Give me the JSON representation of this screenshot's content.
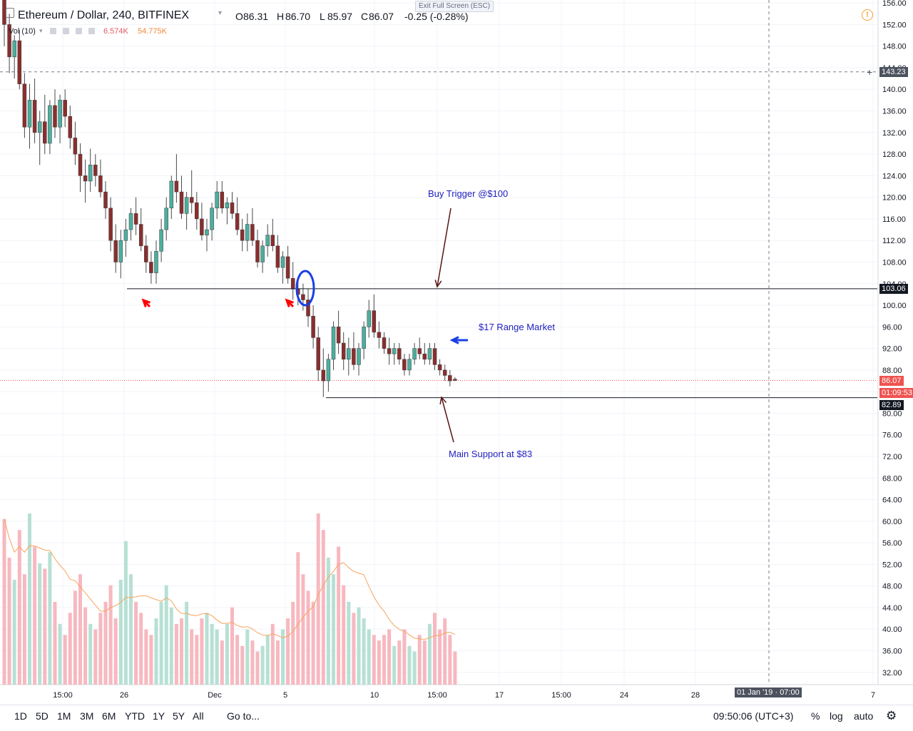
{
  "header": {
    "symbol": "Ethereum / Dollar, 240, BITFINEX",
    "open_label": "O",
    "open": "86.31",
    "high_label": "H",
    "high": "86.70",
    "low_label": "L",
    "low": "85.97",
    "close_label": "C",
    "close": "86.07",
    "change": "-0.25 (-0.28%)",
    "exit_fullscreen": "Exit Full Screen (ESC)",
    "volume_label": "Vol (10)",
    "volume_value": "6.574K",
    "volume_ma": "54.775K"
  },
  "price_labels": {
    "crosshair": "143.23",
    "resistance": "103.06",
    "last": "86.07",
    "countdown": "01:09:53",
    "support": "82.89"
  },
  "time_axis": {
    "crosshair_date": "01 Jan '19 · 07:00"
  },
  "annotations": {
    "buy_trigger": "Buy Trigger @$100",
    "range": "$17 Range Market",
    "support": "Main Support at $83"
  },
  "bottom_bar": {
    "timeframes": [
      "1D",
      "5D",
      "1M",
      "3M",
      "6M",
      "YTD",
      "1Y",
      "5Y",
      "All"
    ],
    "goto": "Go to...",
    "clock": "09:50:06 (UTC+3)",
    "percent": "%",
    "log": "log",
    "auto": "auto"
  },
  "colors": {
    "up": "#4caf9e",
    "down": "#8b2e2e",
    "vol_up": "#b7e0d4",
    "vol_down": "#f7b8bf",
    "annotation_text": "#1e1ebe",
    "arrow_red": "#ff0000",
    "arrow_blue": "#1a3fe6"
  },
  "chart_data": {
    "type": "candlestick",
    "title": "Ethereum / Dollar, 240, BITFINEX",
    "y_ticks": [
      32,
      36,
      40,
      44,
      48,
      52,
      56,
      60,
      64,
      68,
      72,
      76,
      80,
      84,
      88,
      92,
      96,
      100,
      104,
      108,
      112,
      116,
      120,
      124,
      128,
      132,
      136,
      140,
      144,
      148,
      152,
      156
    ],
    "ylim": [
      30.5,
      156.5
    ],
    "x_ticks": [
      "15:00",
      "26",
      "Dec",
      "5",
      "10",
      "15:00",
      "17",
      "15:00",
      "24",
      "28",
      "7"
    ],
    "resistance_level": 103.06,
    "support_level": 82.89,
    "last_price": 86.07,
    "crosshair_price": 143.23,
    "candles": [
      {
        "o": 158,
        "h": 160,
        "l": 148,
        "c": 152
      },
      {
        "o": 152,
        "h": 154,
        "l": 143,
        "c": 146
      },
      {
        "o": 146,
        "h": 150,
        "l": 142,
        "c": 149
      },
      {
        "o": 149,
        "h": 151,
        "l": 140,
        "c": 141
      },
      {
        "o": 141,
        "h": 143,
        "l": 131,
        "c": 133
      },
      {
        "o": 133,
        "h": 141,
        "l": 129,
        "c": 138
      },
      {
        "o": 138,
        "h": 142,
        "l": 130,
        "c": 132
      },
      {
        "o": 132,
        "h": 136,
        "l": 126,
        "c": 134
      },
      {
        "o": 134,
        "h": 139,
        "l": 128,
        "c": 130
      },
      {
        "o": 130,
        "h": 138,
        "l": 128,
        "c": 137
      },
      {
        "o": 137,
        "h": 140,
        "l": 131,
        "c": 133
      },
      {
        "o": 133,
        "h": 139,
        "l": 130,
        "c": 138
      },
      {
        "o": 138,
        "h": 140,
        "l": 133,
        "c": 135
      },
      {
        "o": 135,
        "h": 137,
        "l": 129,
        "c": 131
      },
      {
        "o": 131,
        "h": 134,
        "l": 126,
        "c": 128
      },
      {
        "o": 128,
        "h": 130,
        "l": 121,
        "c": 124
      },
      {
        "o": 124,
        "h": 127,
        "l": 119,
        "c": 123
      },
      {
        "o": 123,
        "h": 129,
        "l": 121,
        "c": 126
      },
      {
        "o": 126,
        "h": 128,
        "l": 122,
        "c": 124
      },
      {
        "o": 124,
        "h": 127,
        "l": 120,
        "c": 121
      },
      {
        "o": 121,
        "h": 123,
        "l": 116,
        "c": 118
      },
      {
        "o": 118,
        "h": 120,
        "l": 110,
        "c": 112
      },
      {
        "o": 112,
        "h": 115,
        "l": 106,
        "c": 108
      },
      {
        "o": 108,
        "h": 114,
        "l": 105,
        "c": 112
      },
      {
        "o": 112,
        "h": 116,
        "l": 109,
        "c": 114
      },
      {
        "o": 114,
        "h": 118,
        "l": 112,
        "c": 117
      },
      {
        "o": 117,
        "h": 120,
        "l": 113,
        "c": 115
      },
      {
        "o": 115,
        "h": 118,
        "l": 110,
        "c": 111
      },
      {
        "o": 111,
        "h": 113,
        "l": 106,
        "c": 108
      },
      {
        "o": 108,
        "h": 110,
        "l": 104,
        "c": 106
      },
      {
        "o": 106,
        "h": 112,
        "l": 104,
        "c": 110
      },
      {
        "o": 110,
        "h": 116,
        "l": 108,
        "c": 114
      },
      {
        "o": 114,
        "h": 120,
        "l": 112,
        "c": 118
      },
      {
        "o": 118,
        "h": 124,
        "l": 116,
        "c": 123
      },
      {
        "o": 123,
        "h": 128,
        "l": 119,
        "c": 121
      },
      {
        "o": 121,
        "h": 124,
        "l": 116,
        "c": 117
      },
      {
        "o": 117,
        "h": 121,
        "l": 114,
        "c": 120
      },
      {
        "o": 120,
        "h": 125,
        "l": 117,
        "c": 119
      },
      {
        "o": 119,
        "h": 121,
        "l": 114,
        "c": 116
      },
      {
        "o": 116,
        "h": 119,
        "l": 112,
        "c": 113
      },
      {
        "o": 113,
        "h": 116,
        "l": 110,
        "c": 114
      },
      {
        "o": 114,
        "h": 119,
        "l": 112,
        "c": 118
      },
      {
        "o": 118,
        "h": 123,
        "l": 116,
        "c": 121
      },
      {
        "o": 121,
        "h": 123,
        "l": 117,
        "c": 118
      },
      {
        "o": 118,
        "h": 120,
        "l": 115,
        "c": 119
      },
      {
        "o": 119,
        "h": 121,
        "l": 116,
        "c": 117
      },
      {
        "o": 117,
        "h": 120,
        "l": 113,
        "c": 114
      },
      {
        "o": 114,
        "h": 116,
        "l": 110,
        "c": 112
      },
      {
        "o": 112,
        "h": 117,
        "l": 110,
        "c": 115
      },
      {
        "o": 115,
        "h": 118,
        "l": 111,
        "c": 112
      },
      {
        "o": 112,
        "h": 114,
        "l": 107,
        "c": 108
      },
      {
        "o": 108,
        "h": 112,
        "l": 106,
        "c": 111
      },
      {
        "o": 111,
        "h": 115,
        "l": 109,
        "c": 113
      },
      {
        "o": 113,
        "h": 116,
        "l": 110,
        "c": 111
      },
      {
        "o": 111,
        "h": 113,
        "l": 106,
        "c": 107
      },
      {
        "o": 107,
        "h": 110,
        "l": 104,
        "c": 109
      },
      {
        "o": 109,
        "h": 111,
        "l": 104,
        "c": 105
      },
      {
        "o": 105,
        "h": 108,
        "l": 101,
        "c": 103
      },
      {
        "o": 103,
        "h": 105,
        "l": 100,
        "c": 102
      },
      {
        "o": 102,
        "h": 104,
        "l": 99,
        "c": 101
      },
      {
        "o": 101,
        "h": 103,
        "l": 96,
        "c": 98
      },
      {
        "o": 98,
        "h": 100,
        "l": 92,
        "c": 94
      },
      {
        "o": 94,
        "h": 96,
        "l": 86,
        "c": 88
      },
      {
        "o": 88,
        "h": 92,
        "l": 83,
        "c": 86
      },
      {
        "o": 86,
        "h": 91,
        "l": 84,
        "c": 90
      },
      {
        "o": 90,
        "h": 97,
        "l": 88,
        "c": 96
      },
      {
        "o": 96,
        "h": 99,
        "l": 91,
        "c": 93
      },
      {
        "o": 93,
        "h": 95,
        "l": 88,
        "c": 90
      },
      {
        "o": 90,
        "h": 94,
        "l": 87,
        "c": 92
      },
      {
        "o": 92,
        "h": 95,
        "l": 88,
        "c": 89
      },
      {
        "o": 89,
        "h": 93,
        "l": 87,
        "c": 92
      },
      {
        "o": 92,
        "h": 97,
        "l": 90,
        "c": 96
      },
      {
        "o": 96,
        "h": 101,
        "l": 94,
        "c": 99
      },
      {
        "o": 99,
        "h": 102,
        "l": 94,
        "c": 95
      },
      {
        "o": 95,
        "h": 97,
        "l": 92,
        "c": 94
      },
      {
        "o": 94,
        "h": 95,
        "l": 91,
        "c": 92
      },
      {
        "o": 92,
        "h": 94,
        "l": 89,
        "c": 91
      },
      {
        "o": 91,
        "h": 93,
        "l": 89,
        "c": 92
      },
      {
        "o": 92,
        "h": 93,
        "l": 89,
        "c": 90
      },
      {
        "o": 90,
        "h": 91,
        "l": 87,
        "c": 88
      },
      {
        "o": 88,
        "h": 91,
        "l": 87,
        "c": 90
      },
      {
        "o": 90,
        "h": 93,
        "l": 89,
        "c": 92
      },
      {
        "o": 92,
        "h": 94,
        "l": 90,
        "c": 91
      },
      {
        "o": 91,
        "h": 93,
        "l": 89,
        "c": 90
      },
      {
        "o": 90,
        "h": 93,
        "l": 89,
        "c": 92
      },
      {
        "o": 92,
        "h": 93,
        "l": 88,
        "c": 89
      },
      {
        "o": 89,
        "h": 90,
        "l": 87,
        "c": 88
      },
      {
        "o": 88,
        "h": 89,
        "l": 86,
        "c": 87
      },
      {
        "o": 87,
        "h": 88,
        "l": 85,
        "c": 86
      },
      {
        "o": 86.31,
        "h": 86.7,
        "l": 85.97,
        "c": 86.07
      }
    ],
    "volume_axis_note": "volume pane shares the bottom of the chart; bars shown relative to each other",
    "volume": [
      60,
      46,
      38,
      56,
      40,
      62,
      50,
      44,
      42,
      48,
      30,
      22,
      18,
      26,
      34,
      40,
      28,
      22,
      20,
      26,
      30,
      36,
      24,
      38,
      52,
      40,
      30,
      26,
      20,
      18,
      24,
      30,
      36,
      28,
      22,
      24,
      30,
      20,
      18,
      24,
      26,
      22,
      20,
      16,
      22,
      28,
      18,
      14,
      20,
      16,
      12,
      14,
      18,
      22,
      16,
      20,
      24,
      30,
      48,
      40,
      34,
      30,
      62,
      56,
      46,
      40,
      50,
      36,
      30,
      26,
      28,
      24,
      20,
      18,
      16,
      18,
      20,
      14,
      16,
      20,
      14,
      12,
      18,
      16,
      22,
      26,
      20,
      24,
      18,
      12
    ]
  }
}
